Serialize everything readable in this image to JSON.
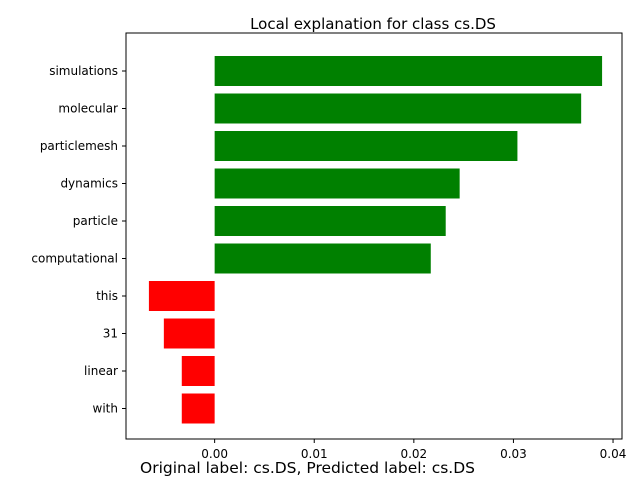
{
  "chart_data": {
    "type": "bar",
    "orientation": "horizontal",
    "title": "Local explanation for class cs.DS",
    "categories": [
      "simulations",
      "molecular",
      "particlemesh",
      "dynamics",
      "particle",
      "computational",
      "this",
      "31",
      "linear",
      "with"
    ],
    "values": [
      0.0389,
      0.0368,
      0.0304,
      0.0246,
      0.0232,
      0.0217,
      -0.0066,
      -0.0051,
      -0.0033,
      -0.0033
    ],
    "positive_color": "#008000",
    "negative_color": "#ff0000",
    "xlim": [
      -0.0089,
      0.0409
    ],
    "xticks": [
      "0.00",
      "0.01",
      "0.02",
      "0.03",
      "0.04"
    ],
    "xtick_values": [
      0.0,
      0.01,
      0.02,
      0.03,
      0.04
    ],
    "grid": false
  },
  "caption": "Original label: cs.DS, Predicted label: cs.DS"
}
